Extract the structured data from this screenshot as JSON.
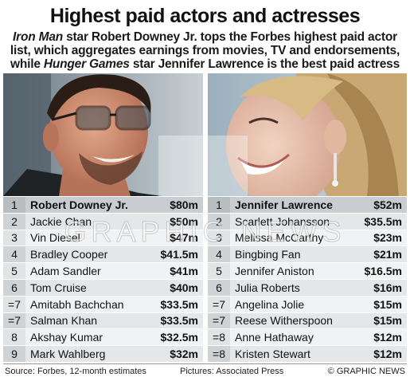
{
  "title": "Highest paid actors and actresses",
  "subtitle": {
    "part1_italic": "Iron Man",
    "part2": " star Robert Downey Jr. tops the Forbes highest paid actor list, which aggregates earnings from movies, TV and endorsements, while ",
    "part3_italic": "Hunger Games",
    "part4": " star Jennifer Lawrence is the best paid actress"
  },
  "actors": [
    {
      "rank": "1",
      "name": "Robert Downey Jr.",
      "earnings": "$80m"
    },
    {
      "rank": "2",
      "name": "Jackie Chan",
      "earnings": "$50m"
    },
    {
      "rank": "3",
      "name": "Vin Diesel",
      "earnings": "$47m"
    },
    {
      "rank": "4",
      "name": "Bradley Cooper",
      "earnings": "$41.5m"
    },
    {
      "rank": "5",
      "name": "Adam Sandler",
      "earnings": "$41m"
    },
    {
      "rank": "6",
      "name": "Tom Cruise",
      "earnings": "$40m"
    },
    {
      "rank": "=7",
      "name": "Amitabh Bachchan",
      "earnings": "$33.5m"
    },
    {
      "rank": "=7",
      "name": "Salman Khan",
      "earnings": "$33.5m"
    },
    {
      "rank": "8",
      "name": "Akshay Kumar",
      "earnings": "$32.5m"
    },
    {
      "rank": "9",
      "name": "Mark Wahlberg",
      "earnings": "$32m"
    }
  ],
  "actresses": [
    {
      "rank": "1",
      "name": "Jennifer Lawrence",
      "earnings": "$52m"
    },
    {
      "rank": "2",
      "name": "Scarlett Johansson",
      "earnings": "$35.5m"
    },
    {
      "rank": "3",
      "name": "Melissa McCarthy",
      "earnings": "$23m"
    },
    {
      "rank": "4",
      "name": "Bingbing Fan",
      "earnings": "$21m"
    },
    {
      "rank": "5",
      "name": "Jennifer Aniston",
      "earnings": "$16.5m"
    },
    {
      "rank": "6",
      "name": "Julia Roberts",
      "earnings": "$16m"
    },
    {
      "rank": "=7",
      "name": "Angelina Jolie",
      "earnings": "$15m"
    },
    {
      "rank": "=7",
      "name": "Reese Witherspoon",
      "earnings": "$15m"
    },
    {
      "rank": "=8",
      "name": "Anne Hathaway",
      "earnings": "$12m"
    },
    {
      "rank": "=8",
      "name": "Kristen Stewart",
      "earnings": "$12m"
    }
  ],
  "watermark": "GRAPHIC NEWS",
  "footer": {
    "source": "Source: Forbes, 12-month estimates",
    "pictures": "Pictures: Associated Press",
    "copyright": "© GRAPHIC NEWS"
  }
}
